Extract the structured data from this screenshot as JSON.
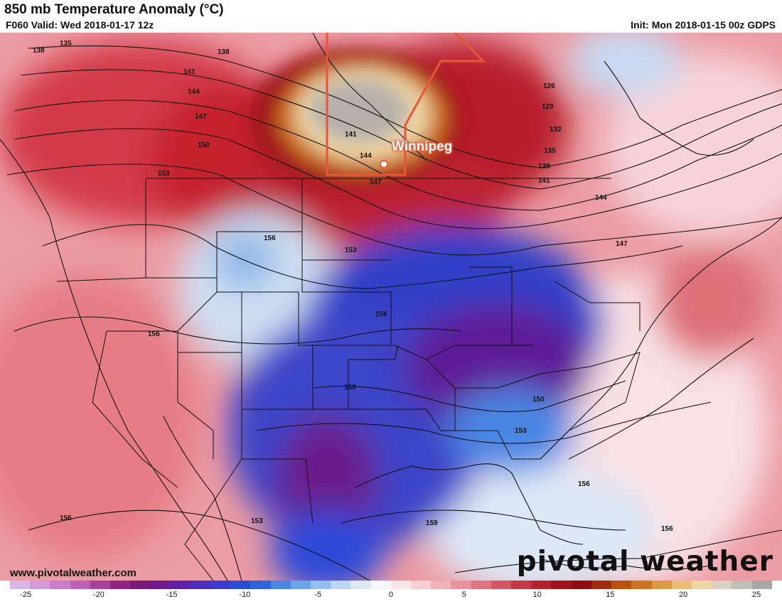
{
  "header": {
    "title": "850 mb Temperature Anomaly (°C)",
    "valid": "F060 Valid: Wed 2018-01-17 12z",
    "init": "Init: Mon 2018-01-15 00z GDPS"
  },
  "map": {
    "city": "Winnipeg",
    "contour_labels": [
      "135",
      "138",
      "138",
      "141",
      "144",
      "147",
      "150",
      "153",
      "156",
      "156",
      "153",
      "147",
      "144",
      "141",
      "126",
      "129",
      "132",
      "135",
      "138",
      "141",
      "144",
      "147",
      "156",
      "159",
      "150",
      "153",
      "156",
      "159",
      "156",
      "153",
      "156"
    ]
  },
  "footer": {
    "website": "www.pivotalweather.com",
    "logo": "pivotal weather"
  },
  "colorbar": {
    "ticks": [
      "-25",
      "-20",
      "-15",
      "-10",
      "-5",
      "0",
      "5",
      "10",
      "15",
      "20",
      "25"
    ],
    "colors": [
      "#d8b6e6",
      "#d29ad8",
      "#c97ec9",
      "#bd60b8",
      "#a8409e",
      "#8e2483",
      "#7a1a7a",
      "#6e1a8e",
      "#5d22a8",
      "#4b2ec0",
      "#3a3ad0",
      "#2d4ad8",
      "#2f63dc",
      "#4a86e4",
      "#6ca4ea",
      "#93c0f0",
      "#bad6f4",
      "#dde9f8",
      "#f6f8fc",
      "#fbe7ea",
      "#f8cfd4",
      "#f2b2b9",
      "#ea939c",
      "#df747f",
      "#d35662",
      "#c63a48",
      "#b6202f",
      "#a1121f",
      "#8c0d14",
      "#a02b0e",
      "#b8500f",
      "#cc7420",
      "#dc9a46",
      "#e8bc74",
      "#efd7a4",
      "#d9d2c4",
      "#c2bfb8",
      "#aaa8a4"
    ]
  }
}
